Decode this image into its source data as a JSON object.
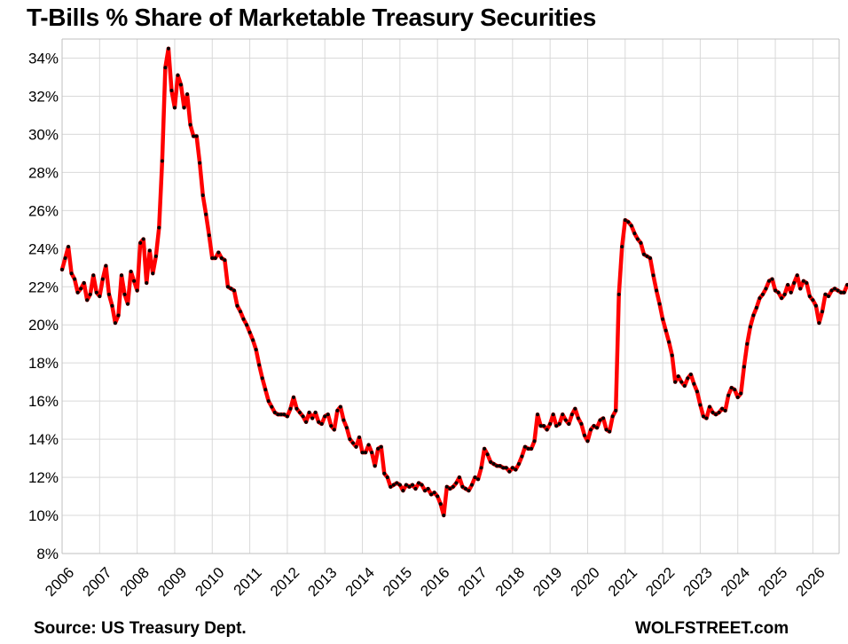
{
  "title": "T-Bills % Share of Marketable Treasury Securities",
  "source": "Source: US Treasury Dept.",
  "brand": "WOLFSTREET.com",
  "colors": {
    "line": "#ff0000",
    "marker": "#000000",
    "grid": "#d9d9d9",
    "axis": "#bfbfbf"
  },
  "chart_data": {
    "type": "line",
    "title": "T-Bills % Share of Marketable Treasury Securities",
    "xlabel": "",
    "ylabel": "",
    "ylim": [
      8,
      35
    ],
    "xlim": [
      2006,
      2026.7
    ],
    "grid": true,
    "legend": "none",
    "y_ticks": [
      "8%",
      "10%",
      "12%",
      "14%",
      "16%",
      "18%",
      "20%",
      "22%",
      "24%",
      "26%",
      "28%",
      "30%",
      "32%",
      "34%"
    ],
    "x_ticks": [
      "2006",
      "2007",
      "2008",
      "2009",
      "2010",
      "2011",
      "2012",
      "2013",
      "2014",
      "2015",
      "2016",
      "2017",
      "2018",
      "2019",
      "2020",
      "2021",
      "2022",
      "2023",
      "2024",
      "2025",
      "2026"
    ],
    "series": [
      {
        "x_start": 2006.0,
        "x_step": 0.0833333,
        "frequency": "monthly",
        "values": [
          22.9,
          23.5,
          24.1,
          22.7,
          22.4,
          21.7,
          21.9,
          22.2,
          21.3,
          21.6,
          22.6,
          21.7,
          21.5,
          22.4,
          23.1,
          21.6,
          21.0,
          20.1,
          20.5,
          22.6,
          21.6,
          21.1,
          22.8,
          22.3,
          21.8,
          24.3,
          24.5,
          22.2,
          23.9,
          22.7,
          23.6,
          25.1,
          28.6,
          33.5,
          34.5,
          32.3,
          31.4,
          33.1,
          32.6,
          31.4,
          32.1,
          30.5,
          29.9,
          29.9,
          28.5,
          26.8,
          25.8,
          24.7,
          23.5,
          23.5,
          23.8,
          23.5,
          23.4,
          22.0,
          21.9,
          21.8,
          21.0,
          20.7,
          20.3,
          20.0,
          19.6,
          19.2,
          18.7,
          17.9,
          17.2,
          16.6,
          16.0,
          15.7,
          15.4,
          15.3,
          15.3,
          15.3,
          15.2,
          15.6,
          16.2,
          15.6,
          15.4,
          15.2,
          14.9,
          15.4,
          15.1,
          15.4,
          14.9,
          14.8,
          15.2,
          15.3,
          14.7,
          14.5,
          15.5,
          15.7,
          15.0,
          14.6,
          14.0,
          13.8,
          13.6,
          14.1,
          13.3,
          13.3,
          13.7,
          13.3,
          12.6,
          13.5,
          13.6,
          12.2,
          12.0,
          11.5,
          11.6,
          11.7,
          11.6,
          11.3,
          11.6,
          11.5,
          11.6,
          11.4,
          11.7,
          11.6,
          11.3,
          11.4,
          11.1,
          11.2,
          11.0,
          10.6,
          10.0,
          11.5,
          11.4,
          11.5,
          11.7,
          12.0,
          11.5,
          11.4,
          11.3,
          11.6,
          12.0,
          11.9,
          12.5,
          13.5,
          13.2,
          12.8,
          12.7,
          12.6,
          12.6,
          12.5,
          12.5,
          12.3,
          12.5,
          12.4,
          12.7,
          13.1,
          13.6,
          13.5,
          13.5,
          13.9,
          15.3,
          14.7,
          14.7,
          14.5,
          14.8,
          15.3,
          14.7,
          14.8,
          15.3,
          15.0,
          14.8,
          15.3,
          15.6,
          15.1,
          14.8,
          14.2,
          13.9,
          14.5,
          14.7,
          14.6,
          15.0,
          15.1,
          14.5,
          14.4,
          15.2,
          15.5,
          21.6,
          24.1,
          25.5,
          25.4,
          25.2,
          24.8,
          24.5,
          24.3,
          23.7,
          23.6,
          23.5,
          22.6,
          21.8,
          21.1,
          20.3,
          19.7,
          19.1,
          18.4,
          17.0,
          17.3,
          17.0,
          16.8,
          17.2,
          17.4,
          16.9,
          16.5,
          15.8,
          15.2,
          15.1,
          15.7,
          15.4,
          15.3,
          15.4,
          15.6,
          15.5,
          16.3,
          16.7,
          16.6,
          16.2,
          16.4,
          17.8,
          19.0,
          19.9,
          20.5,
          20.9,
          21.4,
          21.6,
          21.9,
          22.3,
          22.4,
          21.8,
          21.7,
          21.4,
          21.6,
          22.1,
          21.7,
          22.2,
          22.6,
          21.9,
          22.3,
          22.2,
          21.5,
          21.3,
          21.0,
          20.1,
          20.7,
          21.6,
          21.5,
          21.8,
          21.9,
          21.8,
          21.7,
          21.7,
          22.1,
          22.0,
          21.7,
          21.6,
          21.8,
          21.6,
          22.2
        ]
      }
    ]
  }
}
